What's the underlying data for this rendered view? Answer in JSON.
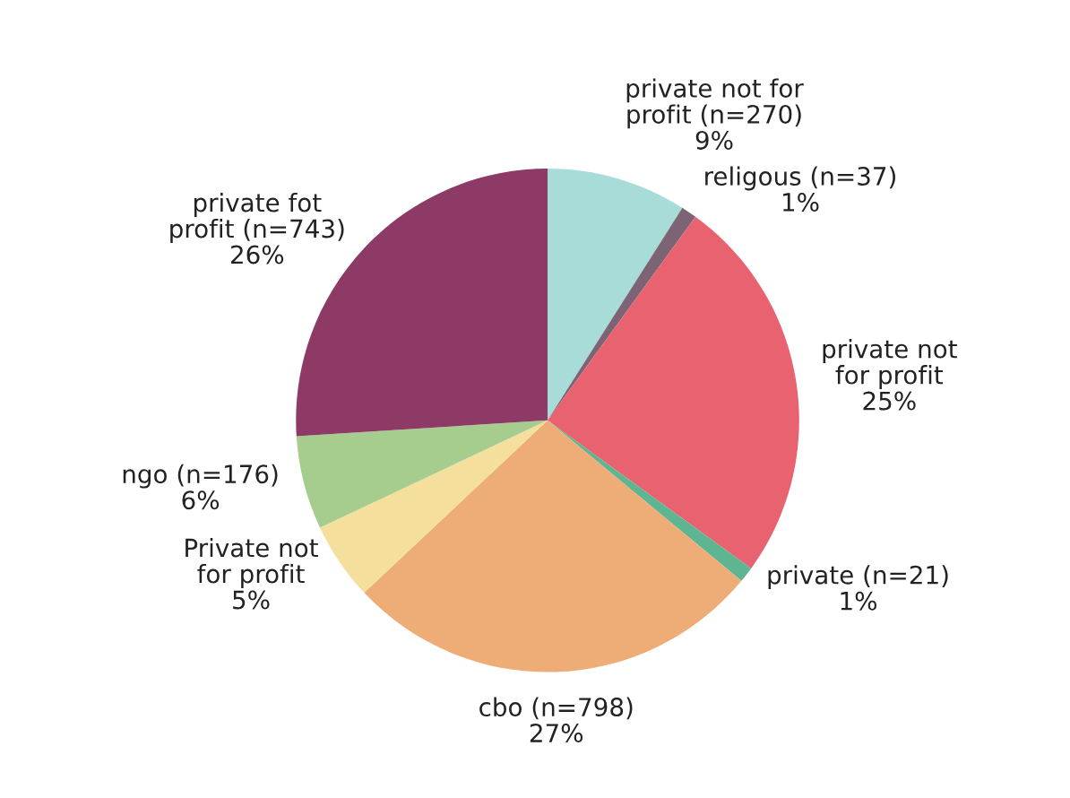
{
  "chart_data": {
    "type": "pie",
    "categories": [
      "private not for\nprofit (n=270)",
      "religous (n=37)",
      "private not\nfor profit",
      "private (n=21)",
      "cbo (n=798)",
      "Private not\nfor profit",
      "ngo (n=176)",
      "private fot\nprofit (n=743)"
    ],
    "values": [
      9,
      1,
      25,
      1,
      27,
      5,
      6,
      26
    ],
    "value_labels": [
      "9%",
      "1%",
      "25%",
      "1%",
      "27%",
      "5%",
      "6%",
      "26%"
    ],
    "colors": [
      "#a8dcd9",
      "#7d6474",
      "#e8626f",
      "#5db592",
      "#eead77",
      "#f4e09c",
      "#a6cd8e",
      "#8d3b66"
    ],
    "legend": false
  }
}
